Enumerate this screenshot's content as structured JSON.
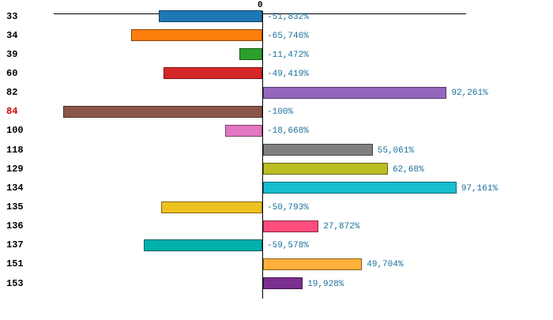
{
  "chart_data": {
    "type": "bar",
    "orientation": "horizontal",
    "title": "",
    "xlabel": "",
    "ylabel": "",
    "zero_label": "0",
    "xlim": [
      -100,
      100
    ],
    "grid": false,
    "legend": false,
    "decimal_separator": ",",
    "categories": [
      "33",
      "34",
      "39",
      "60",
      "82",
      "84",
      "100",
      "118",
      "129",
      "134",
      "135",
      "136",
      "137",
      "151",
      "153"
    ],
    "values": [
      -51.832,
      -65.746,
      -11.472,
      -49.419,
      92.261,
      -100,
      -18.668,
      55.061,
      62.68,
      97.161,
      -50.793,
      27.872,
      -59.578,
      49.704,
      19.928
    ],
    "value_labels": [
      "-51,832%",
      "-65,746%",
      "-11,472%",
      "-49,419%",
      "92,261%",
      "-100%",
      "-18,668%",
      "55,061%",
      "62,68%",
      "97,161%",
      "-50,793%",
      "27,872%",
      "-59,578%",
      "49,704%",
      "19,928%"
    ],
    "bar_colors": [
      "#1f77b4",
      "#ff7f0e",
      "#2ca02c",
      "#d62728",
      "#9467bd",
      "#8c564b",
      "#e377c2",
      "#7f7f7f",
      "#bcbd22",
      "#17becf",
      "#edc120",
      "#ff4d7d",
      "#00b0aa",
      "#ffb13b",
      "#7a2e8d"
    ],
    "category_label_colors": [
      "#000000",
      "#000000",
      "#000000",
      "#000000",
      "#000000",
      "#cc0000",
      "#000000",
      "#000000",
      "#000000",
      "#000000",
      "#000000",
      "#000000",
      "#000000",
      "#000000",
      "#000000"
    ],
    "value_label_color": "#1b6f9b",
    "axis_color": "#000000"
  }
}
